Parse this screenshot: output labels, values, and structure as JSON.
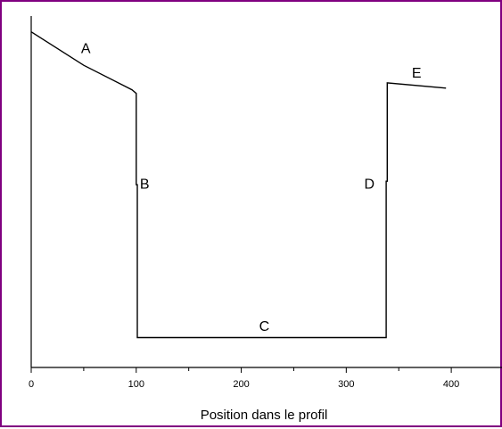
{
  "chart_data": {
    "type": "line",
    "title": "",
    "xlabel": "Position dans le profil",
    "ylabel": "",
    "xlim": [
      0,
      450
    ],
    "ylim": [
      0,
      1
    ],
    "grid": false,
    "x_ticks": [
      0,
      100,
      200,
      300,
      400
    ],
    "x_tick_labels": [
      "0",
      "100",
      "200",
      "300",
      "400"
    ],
    "x_minor_step": 50,
    "series": [
      {
        "color": "#000000",
        "points": [
          {
            "x": 0,
            "y": 0.955
          },
          {
            "x": 50,
            "y": 0.86
          },
          {
            "x": 96,
            "y": 0.79
          },
          {
            "x": 100,
            "y": 0.78
          },
          {
            "x": 100,
            "y": 0.52
          },
          {
            "x": 101,
            "y": 0.52
          },
          {
            "x": 101,
            "y": 0.085
          },
          {
            "x": 338,
            "y": 0.085
          },
          {
            "x": 338,
            "y": 0.53
          },
          {
            "x": 339,
            "y": 0.53
          },
          {
            "x": 339,
            "y": 0.81
          },
          {
            "x": 395,
            "y": 0.795
          }
        ]
      }
    ],
    "annotations": [
      {
        "text": "A",
        "x": 52,
        "y": 0.905
      },
      {
        "text": "B",
        "x": 108,
        "y": 0.52
      },
      {
        "text": "C",
        "x": 222,
        "y": 0.115
      },
      {
        "text": "D",
        "x": 322,
        "y": 0.52
      },
      {
        "text": "E",
        "x": 367,
        "y": 0.835
      }
    ]
  }
}
